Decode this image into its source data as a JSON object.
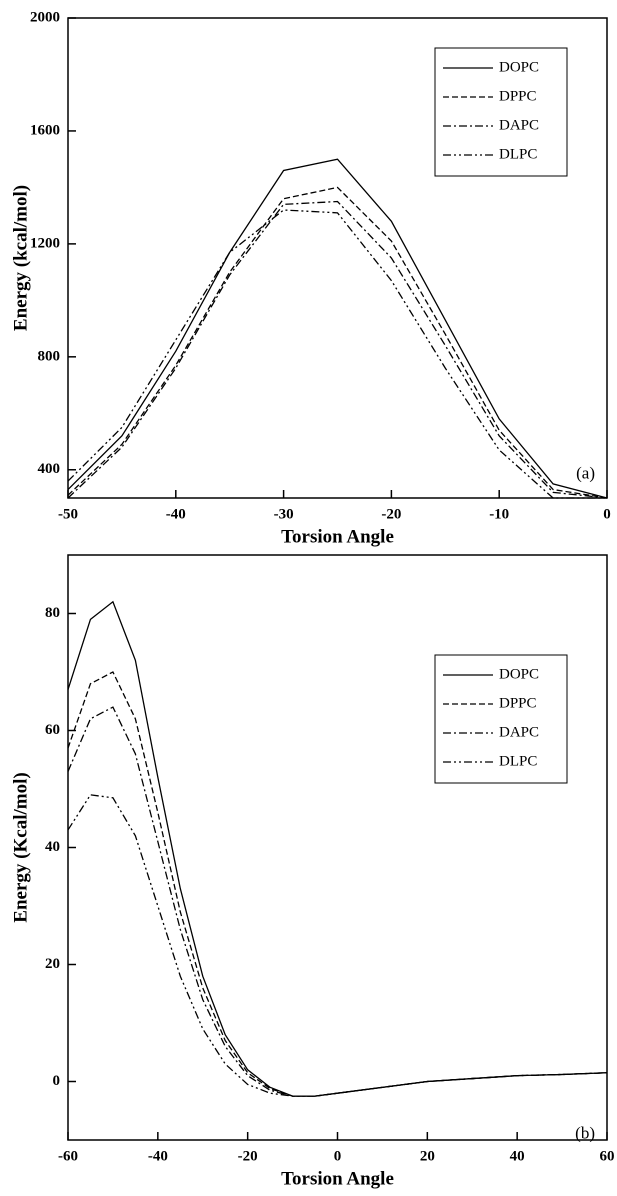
{
  "chart_data": [
    {
      "type": "line",
      "panel_label": "(a)",
      "x_label": "Torsion Angle",
      "y_label": "Energy (kcal/mol)",
      "x": [
        -50,
        -45,
        -40,
        -35,
        -30,
        -25,
        -20,
        -15,
        -10,
        -5,
        0
      ],
      "series": [
        {
          "name": "DOPC",
          "color": "#000000",
          "dash": "solid",
          "values": [
            330,
            520,
            820,
            1170,
            1460,
            1500,
            1280,
            930,
            580,
            350,
            300
          ]
        },
        {
          "name": "DPPC",
          "color": "#000000",
          "dash": "dashed",
          "values": [
            310,
            490,
            770,
            1100,
            1360,
            1400,
            1210,
            880,
            540,
            330,
            300
          ]
        },
        {
          "name": "DAPC",
          "color": "#000000",
          "dash": "dashdot",
          "values": [
            300,
            480,
            760,
            1090,
            1340,
            1350,
            1150,
            840,
            520,
            320,
            300
          ]
        },
        {
          "name": "DLPC",
          "color": "#000000",
          "dash": "dashdotdot",
          "values": [
            360,
            550,
            860,
            1170,
            1320,
            1310,
            1070,
            760,
            470,
            300,
            300
          ]
        }
      ],
      "xlim": [
        -50,
        0
      ],
      "xticks": [
        -50,
        -40,
        -30,
        -20,
        -10,
        0
      ],
      "ylim": [
        300,
        2000
      ],
      "yticks": [
        400,
        800,
        1200,
        1600,
        2000
      ],
      "grid": false,
      "legend": "top right"
    },
    {
      "type": "line",
      "panel_label": "(b)",
      "x_label": "Torsion Angle",
      "y_label": "Energy (Kcal/mol)",
      "x": [
        -60,
        -55,
        -50,
        -45,
        -40,
        -35,
        -30,
        -25,
        -20,
        -15,
        -10,
        -5,
        0,
        10,
        20,
        30,
        40,
        50,
        60
      ],
      "series": [
        {
          "name": "DOPC",
          "color": "#000000",
          "dash": "solid",
          "values": [
            67,
            79,
            82,
            72,
            52,
            33,
            18,
            8,
            2,
            -1,
            -2.5,
            -2.5,
            -2,
            -1,
            0,
            0.5,
            1,
            1.2,
            1.5
          ]
        },
        {
          "name": "DPPC",
          "color": "#000000",
          "dash": "dashed",
          "values": [
            57,
            68,
            70,
            62,
            46,
            29,
            16,
            7,
            1.5,
            -1.2,
            -2.5,
            -2.5,
            -2,
            -1,
            0,
            0.5,
            1,
            1.2,
            1.5
          ]
        },
        {
          "name": "DAPC",
          "color": "#000000",
          "dash": "dashdot",
          "values": [
            53,
            62,
            64,
            56,
            41,
            26,
            14,
            6,
            1,
            -1.5,
            -2.5,
            -2.5,
            -2,
            -1,
            0,
            0.5,
            1,
            1.2,
            1.5
          ]
        },
        {
          "name": "DLPC",
          "color": "#000000",
          "dash": "dashdotdot",
          "values": [
            43,
            49,
            48.5,
            42,
            30,
            18,
            9,
            3,
            -0.5,
            -2,
            -2.5,
            -2.5,
            -2,
            -1,
            0,
            0.5,
            1,
            1.2,
            1.5
          ]
        }
      ],
      "xlim": [
        -60,
        60
      ],
      "xticks": [
        -60,
        -40,
        -20,
        0,
        20,
        40,
        60
      ],
      "ylim": [
        -10,
        90
      ],
      "yticks": [
        0,
        20,
        40,
        60,
        80
      ],
      "grid": false,
      "legend": "top right"
    }
  ]
}
